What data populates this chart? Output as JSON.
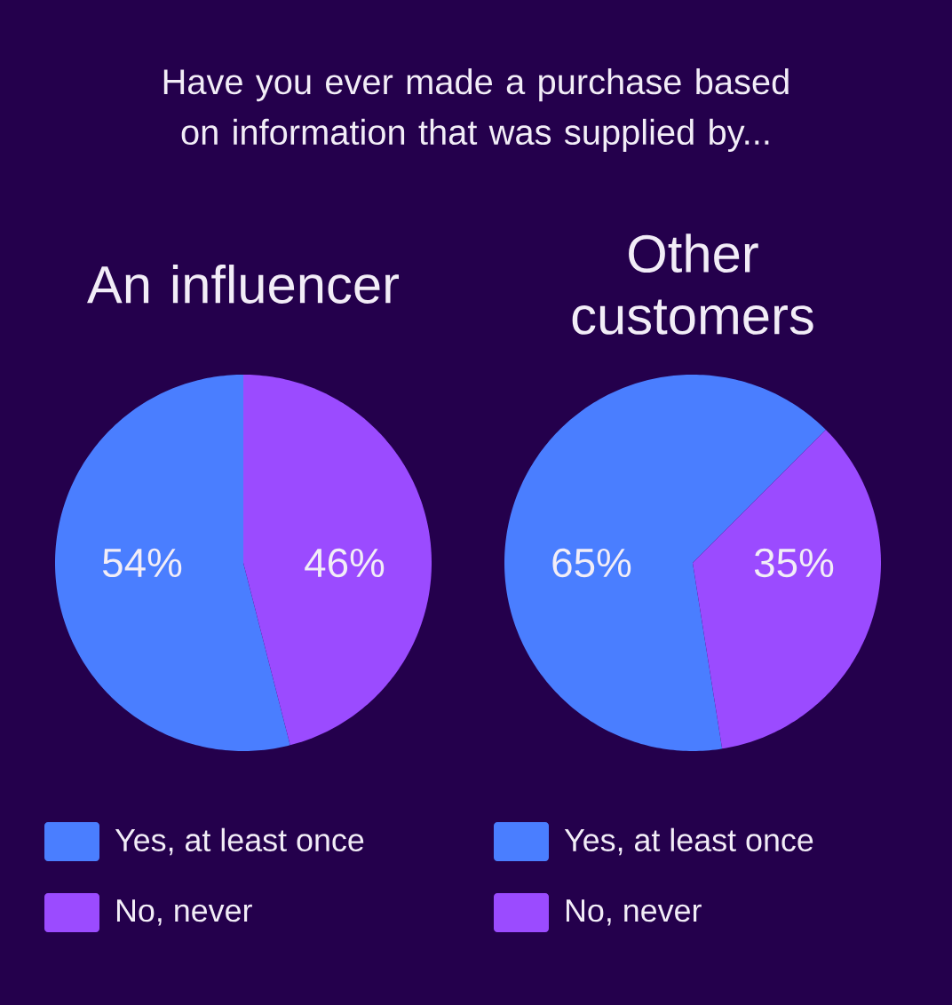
{
  "chart_data": [
    {
      "type": "pie",
      "title": "An influencer",
      "annotations": [
        "Have you ever made a purchase based on information that was supplied by..."
      ],
      "categories": [
        "Yes, at least once",
        "No, never"
      ],
      "values": [
        54,
        46
      ],
      "value_labels": [
        "54%",
        "46%"
      ],
      "colors": [
        "#4a7eff",
        "#9b4bff"
      ],
      "legend": "bottom"
    },
    {
      "type": "pie",
      "title": "Other customers",
      "categories": [
        "Yes, at least once",
        "No, never"
      ],
      "values": [
        65,
        35
      ],
      "value_labels": [
        "65%",
        "35%"
      ],
      "colors": [
        "#4a7eff",
        "#9b4bff"
      ],
      "legend": "bottom"
    }
  ]
}
